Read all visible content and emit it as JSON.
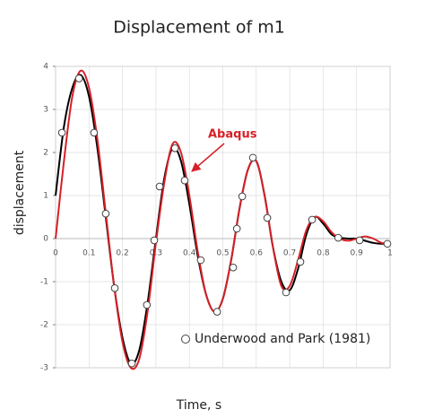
{
  "chart_data": {
    "type": "line",
    "title": "Displacement of m1",
    "x_label": "Time, s",
    "y_label": "displacement",
    "xlim": [
      0,
      1
    ],
    "ylim": [
      -3,
      4
    ],
    "xticks": [
      0,
      0.1,
      0.2,
      0.3,
      0.4,
      0.5,
      0.6,
      0.7,
      0.8,
      0.9,
      1
    ],
    "yticks": [
      -3,
      -2,
      -1,
      0,
      1,
      2,
      3,
      4
    ],
    "grid": true,
    "legend": "lower right",
    "x": [
      0,
      0.025,
      0.05,
      0.075,
      0.1,
      0.125,
      0.15,
      0.175,
      0.2,
      0.225,
      0.25,
      0.275,
      0.3,
      0.325,
      0.35,
      0.375,
      0.4,
      0.425,
      0.45,
      0.475,
      0.5,
      0.525,
      0.55,
      0.575,
      0.6,
      0.625,
      0.65,
      0.675,
      0.7,
      0.725,
      0.75,
      0.775,
      0.8,
      0.825,
      0.85,
      0.875,
      0.9,
      0.925,
      0.95,
      0.975,
      1
    ],
    "series": [
      {
        "color": "#000000",
        "values": [
          1.0,
          2.6,
          3.5,
          3.8,
          3.3,
          2.1,
          0.5,
          -1.1,
          -2.3,
          -2.9,
          -2.6,
          -1.5,
          0.0,
          1.4,
          2.1,
          1.8,
          0.8,
          -0.4,
          -1.3,
          -1.7,
          -1.4,
          -0.5,
          0.7,
          1.6,
          1.8,
          1.0,
          -0.2,
          -1.0,
          -1.2,
          -0.7,
          0.1,
          0.5,
          0.35,
          0.1,
          0.02,
          0.0,
          0.0,
          -0.05,
          -0.1,
          -0.12,
          -0.1
        ]
      },
      {
        "name": "Abaqus",
        "color": "#d62027",
        "values": [
          0.0,
          1.8,
          3.3,
          3.9,
          3.5,
          2.3,
          0.6,
          -1.1,
          -2.4,
          -3.0,
          -2.8,
          -1.7,
          -0.1,
          1.3,
          2.2,
          2.0,
          1.0,
          -0.3,
          -1.3,
          -1.7,
          -1.4,
          -0.5,
          0.7,
          1.6,
          1.8,
          1.0,
          -0.2,
          -1.1,
          -1.1,
          -0.5,
          0.2,
          0.5,
          0.4,
          0.15,
          0.0,
          -0.05,
          0.0,
          0.05,
          0.0,
          -0.1,
          -0.1
        ]
      },
      {
        "name": "Underwood and Park (1981)",
        "type": "scatter",
        "color": "#444444",
        "x": [
          0.019,
          0.07,
          0.115,
          0.15,
          0.177,
          0.228,
          0.273,
          0.295,
          0.311,
          0.357,
          0.386,
          0.434,
          0.483,
          0.531,
          0.542,
          0.558,
          0.59,
          0.633,
          0.689,
          0.732,
          0.767,
          0.845,
          0.909,
          0.992
        ],
        "values": [
          2.46,
          3.72,
          2.46,
          0.58,
          -1.15,
          -2.9,
          -1.54,
          -0.04,
          1.21,
          2.1,
          1.35,
          -0.5,
          -1.7,
          -0.67,
          0.23,
          0.98,
          1.88,
          0.48,
          -1.25,
          -0.54,
          0.44,
          0.02,
          -0.04,
          -0.12
        ]
      }
    ]
  }
}
